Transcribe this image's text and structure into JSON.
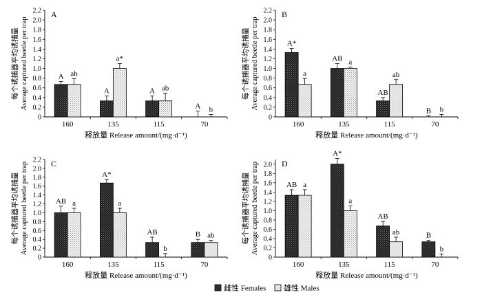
{
  "chart_data": [
    {
      "type": "bar",
      "panel": "A",
      "categories": [
        "160",
        "135",
        "115",
        "70"
      ],
      "series": [
        {
          "name": "雌性 Females",
          "values": [
            0.67,
            0.33,
            0.33,
            0.0
          ],
          "errors": [
            0.06,
            0.1,
            0.1,
            0.12
          ],
          "labels": [
            "A",
            "A",
            "A",
            "A"
          ]
        },
        {
          "name": "雄性 Males",
          "values": [
            0.67,
            1.0,
            0.33,
            0.0
          ],
          "errors": [
            0.12,
            0.1,
            0.16,
            0.05
          ],
          "labels": [
            "ab",
            "a*",
            "ab",
            "b"
          ]
        }
      ],
      "ylim": [
        0,
        2.2
      ],
      "yticks": [
        "0",
        "0.2",
        "0.4",
        "0.6",
        "0.8",
        "1.0",
        "1.2",
        "1.4",
        "1.6",
        "1.8",
        "2.0",
        "2.2"
      ],
      "xlabel": "释放量 Release amount/(mg·d⁻¹)",
      "ylabel_cn": "每个诱捕器平均诱捕量",
      "ylabel_en": "Average captured beetle per trap"
    },
    {
      "type": "bar",
      "panel": "B",
      "categories": [
        "160",
        "135",
        "115",
        "70"
      ],
      "series": [
        {
          "name": "雌性 Females",
          "values": [
            1.33,
            1.0,
            0.33,
            0.0
          ],
          "errors": [
            0.08,
            0.1,
            0.07,
            0.02
          ],
          "labels": [
            "A*",
            "AB",
            "AB",
            "B"
          ]
        },
        {
          "name": "雄性 Males",
          "values": [
            0.67,
            1.0,
            0.67,
            0.0
          ],
          "errors": [
            0.12,
            0.03,
            0.1,
            0.05
          ],
          "labels": [
            "a",
            "a",
            "ab",
            "b"
          ]
        }
      ],
      "ylim": [
        0,
        2.2
      ],
      "yticks": [
        "0",
        "0.2",
        "0.4",
        "0.6",
        "0.8",
        "1.0",
        "1.2",
        "1.4",
        "1.6",
        "1.8",
        "2.0",
        "2.2"
      ],
      "xlabel": "释放量 Release amount/(mg·d⁻¹)",
      "ylabel_cn": "每个诱捕器平均诱捕量",
      "ylabel_en": "Average captured beetle per trap"
    },
    {
      "type": "bar",
      "panel": "C",
      "categories": [
        "160",
        "135",
        "115",
        "70"
      ],
      "series": [
        {
          "name": "雌性 Females",
          "values": [
            1.0,
            1.67,
            0.33,
            0.33
          ],
          "errors": [
            0.15,
            0.08,
            0.12,
            0.07
          ],
          "labels": [
            "AB",
            "A*",
            "AB",
            "B"
          ]
        },
        {
          "name": "雄性 Males",
          "values": [
            1.0,
            1.0,
            0.0,
            0.33
          ],
          "errors": [
            0.1,
            0.1,
            0.08,
            0.05
          ],
          "labels": [
            "a",
            "a",
            "b",
            "ab"
          ]
        }
      ],
      "ylim": [
        0,
        2.2
      ],
      "yticks": [
        "0",
        "0.2",
        "0.4",
        "0.6",
        "0.8",
        "1.0",
        "1.2",
        "1.4",
        "1.6",
        "1.8",
        "2.0",
        "2.2"
      ],
      "xlabel": "释放量 Release amount/(mg·d⁻¹)",
      "ylabel_cn": "每个诱捕器平均诱捕量",
      "ylabel_en": "Average captured beetle per trap"
    },
    {
      "type": "bar",
      "panel": "D",
      "categories": [
        "160",
        "135",
        "115",
        "70"
      ],
      "series": [
        {
          "name": "雌性 Females",
          "values": [
            1.33,
            2.0,
            0.67,
            0.33
          ],
          "errors": [
            0.12,
            0.12,
            0.1,
            0.03
          ],
          "labels": [
            "AB",
            "A*",
            "AB",
            "B"
          ]
        },
        {
          "name": "雄性 Males",
          "values": [
            1.33,
            1.0,
            0.33,
            0.0
          ],
          "errors": [
            0.12,
            0.1,
            0.1,
            0.07
          ],
          "labels": [
            "a",
            "a",
            "ab",
            "b"
          ]
        }
      ],
      "ylim": [
        0,
        2.1
      ],
      "yticks": [
        "0",
        "0.2",
        "0.4",
        "0.6",
        "0.8",
        "1.0",
        "1.2",
        "1.4",
        "1.6",
        "1.8",
        "2.0"
      ],
      "xlabel": "释放量 Release amount/(mg·d⁻¹)",
      "ylabel_cn": "每个诱捕器平均诱捕量",
      "ylabel_en": "Average captured beetle per trap"
    }
  ],
  "legend": {
    "females": "雌性 Females",
    "males": "雄性 Males"
  },
  "colors": {
    "females_fill": "#2a2a2a",
    "males_fill": "#f2f2f2",
    "axis": "#000000"
  }
}
